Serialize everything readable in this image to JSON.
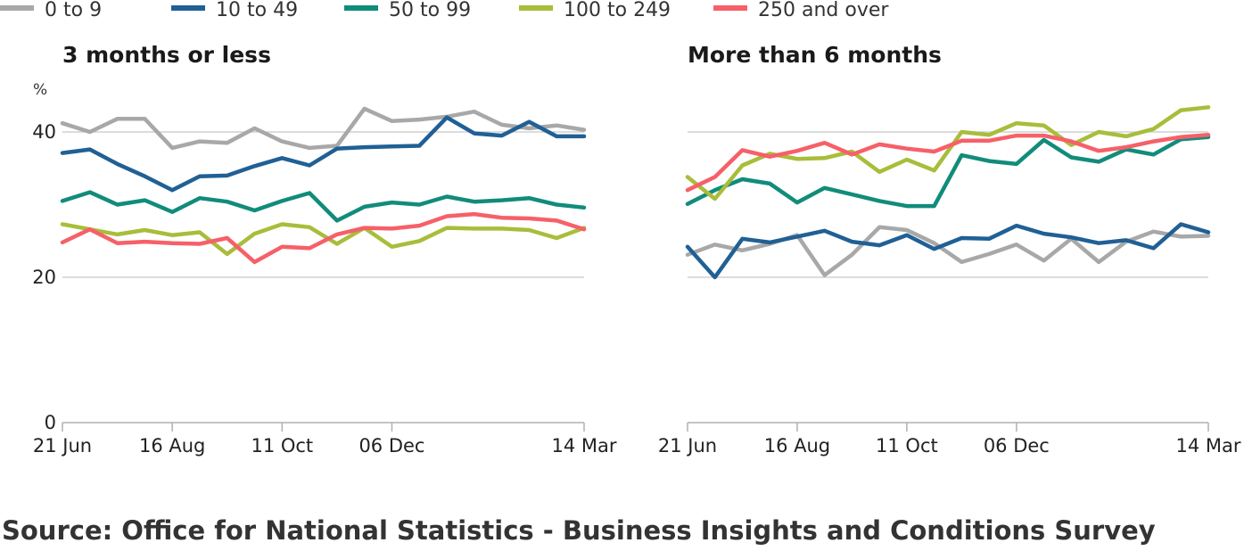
{
  "source": "Source: Office for National Statistics - Business Insights and Conditions Survey",
  "chart_data": {
    "type": "line",
    "unit": "%",
    "legend_position": "top",
    "grid": true,
    "ylim": [
      0,
      40
    ],
    "yticks": [
      {
        "value": 0,
        "label": "0"
      },
      {
        "value": 20,
        "label": "20"
      },
      {
        "value": 40,
        "label": "40"
      }
    ],
    "xticks": [
      {
        "index": 0,
        "label": "21 Jun"
      },
      {
        "index": 4,
        "label": "16 Aug"
      },
      {
        "index": 8,
        "label": "11 Oct"
      },
      {
        "index": 12,
        "label": "06 Dec"
      },
      {
        "index": 19,
        "label": "14 Mar"
      }
    ],
    "series_styles": [
      {
        "name": "0 to 9",
        "color": "#a8a8a8"
      },
      {
        "name": "10 to 49",
        "color": "#206095"
      },
      {
        "name": "50 to 99",
        "color": "#118c7b"
      },
      {
        "name": "100 to 249",
        "color": "#a8bd3a"
      },
      {
        "name": "250 and over",
        "color": "#f66068"
      }
    ],
    "panels": [
      {
        "title": "3 months or less",
        "series": [
          {
            "name": "0 to 9",
            "values": [
              41.2,
              40.0,
              41.8,
              41.8,
              37.8,
              38.7,
              38.5,
              40.5,
              38.7,
              37.8,
              38.1,
              43.2,
              41.5,
              41.7,
              42.1,
              42.8,
              41.0,
              40.5,
              40.9,
              40.3
            ]
          },
          {
            "name": "10 to 49",
            "values": [
              37.1,
              37.6,
              35.6,
              33.9,
              32.0,
              33.9,
              34.0,
              35.3,
              36.4,
              35.4,
              37.7,
              37.9,
              38.0,
              38.1,
              42.0,
              39.8,
              39.5,
              41.4,
              39.4,
              39.4
            ]
          },
          {
            "name": "50 to 99",
            "values": [
              30.5,
              31.7,
              30.0,
              30.6,
              29.0,
              30.9,
              30.4,
              29.2,
              30.5,
              31.6,
              27.8,
              29.7,
              30.3,
              30.0,
              31.1,
              30.4,
              30.6,
              30.9,
              30.0,
              29.6
            ]
          },
          {
            "name": "100 to 249",
            "values": [
              27.3,
              26.6,
              25.9,
              26.5,
              25.8,
              26.2,
              23.2,
              26.0,
              27.3,
              26.9,
              24.6,
              26.8,
              24.2,
              25.0,
              26.8,
              26.7,
              26.7,
              26.5,
              25.4,
              26.8
            ]
          },
          {
            "name": "250 and over",
            "values": [
              24.8,
              26.6,
              24.7,
              24.9,
              24.7,
              24.6,
              25.4,
              22.1,
              24.2,
              24.0,
              25.9,
              26.8,
              26.7,
              27.1,
              28.4,
              28.7,
              28.2,
              28.1,
              27.8,
              26.6
            ]
          }
        ]
      },
      {
        "title": "More than 6 months",
        "series": [
          {
            "name": "0 to 9",
            "values": [
              23.1,
              24.5,
              23.7,
              24.6,
              25.8,
              20.3,
              23.1,
              26.9,
              26.5,
              24.7,
              22.1,
              23.2,
              24.5,
              22.3,
              25.3,
              22.1,
              24.9,
              26.3,
              25.6,
              25.7
            ]
          },
          {
            "name": "10 to 49",
            "values": [
              24.2,
              20.0,
              25.3,
              24.8,
              25.6,
              26.4,
              24.9,
              24.4,
              25.8,
              23.9,
              25.4,
              25.3,
              27.1,
              26.0,
              25.5,
              24.7,
              25.1,
              24.0,
              27.3,
              26.2
            ]
          },
          {
            "name": "50 to 99",
            "values": [
              30.1,
              32.0,
              33.5,
              32.9,
              30.3,
              32.3,
              31.4,
              30.5,
              29.8,
              29.8,
              36.8,
              36.0,
              35.6,
              38.9,
              36.5,
              35.9,
              37.6,
              36.9,
              39.0,
              39.3
            ]
          },
          {
            "name": "100 to 249",
            "values": [
              33.8,
              30.8,
              35.4,
              37.0,
              36.3,
              36.4,
              37.3,
              34.5,
              36.2,
              34.7,
              40.0,
              39.6,
              41.2,
              40.9,
              38.2,
              40.0,
              39.4,
              40.4,
              43.0,
              43.4
            ]
          },
          {
            "name": "250 and over",
            "values": [
              32.0,
              33.8,
              37.5,
              36.6,
              37.4,
              38.5,
              36.9,
              38.3,
              37.7,
              37.3,
              38.8,
              38.8,
              39.5,
              39.5,
              38.7,
              37.4,
              37.9,
              38.7,
              39.3,
              39.6
            ]
          }
        ]
      }
    ]
  }
}
